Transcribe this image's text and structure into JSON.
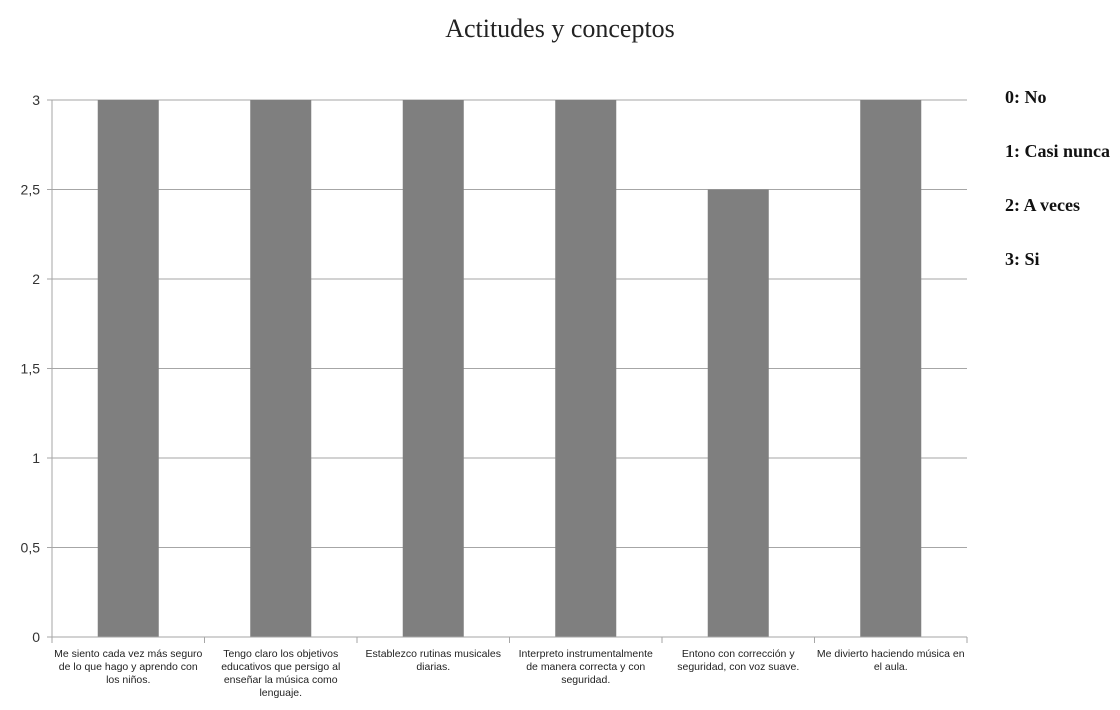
{
  "chart_data": {
    "type": "bar",
    "title": "Actitudes y conceptos",
    "categories": [
      "Me siento cada vez más seguro de lo que hago y aprendo con los niños.",
      "Tengo claro los objetivos educativos que persigo al enseñar la música como lenguaje.",
      "Establezco rutinas musicales diarias.",
      "Interpreto instrumentalmente de manera correcta y con seguridad.",
      "Entono con corrección y seguridad, con voz suave.",
      "Me divierto haciendo música en el aula."
    ],
    "values": [
      3,
      3,
      3,
      3,
      2.5,
      3
    ],
    "ylim": [
      0,
      3
    ],
    "yticks": [
      "0",
      "0,5",
      "1",
      "1,5",
      "2",
      "2,5",
      "3"
    ],
    "grid": true,
    "bar_color": "#7f7f7f",
    "grid_color": "#a6a6a6"
  },
  "legend": {
    "items": [
      "0: No",
      "1: Casi nunca",
      "2: A veces",
      "3: Si"
    ]
  }
}
